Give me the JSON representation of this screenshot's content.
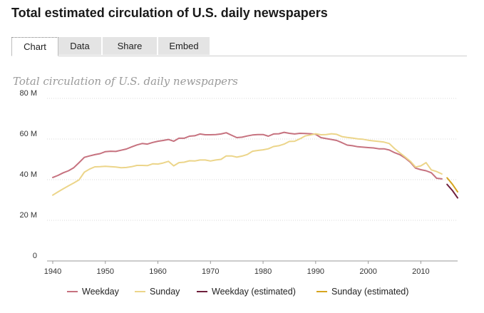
{
  "page": {
    "title": "Total estimated circulation of U.S. daily newspapers"
  },
  "tabs": [
    {
      "label": "Chart",
      "active": true
    },
    {
      "label": "Data",
      "active": false
    },
    {
      "label": "Share",
      "active": false
    },
    {
      "label": "Embed",
      "active": false
    }
  ],
  "colors": {
    "weekday": "#c6727f",
    "sunday": "#ecd58a",
    "weekday_estimated": "#6e1f3c",
    "sunday_estimated": "#d6a51f",
    "grid": "#d8d8d8"
  },
  "chart_data": {
    "type": "line",
    "title": "Total circulation of U.S. daily newspapers",
    "xlabel": "",
    "ylabel": "",
    "xlim": [
      1940,
      2017
    ],
    "ylim": [
      0,
      80
    ],
    "x_ticks": [
      "1940",
      "1950",
      "1960",
      "1970",
      "1980",
      "1990",
      "2000",
      "2010"
    ],
    "x_tick_values": [
      1940,
      1950,
      1960,
      1970,
      1980,
      1990,
      2000,
      2010
    ],
    "y_ticks": [
      "0",
      "20 M",
      "40 M",
      "60 M",
      "80 M"
    ],
    "y_tick_values": [
      0,
      20,
      40,
      60,
      80
    ],
    "grid": true,
    "legend_position": "bottom",
    "series": [
      {
        "name": "Weekday",
        "color_key": "weekday",
        "x": [
          1940,
          1941,
          1942,
          1943,
          1944,
          1945,
          1946,
          1947,
          1948,
          1949,
          1950,
          1951,
          1952,
          1953,
          1954,
          1955,
          1956,
          1957,
          1958,
          1959,
          1960,
          1961,
          1962,
          1963,
          1964,
          1965,
          1966,
          1967,
          1968,
          1969,
          1970,
          1971,
          1972,
          1973,
          1974,
          1975,
          1976,
          1977,
          1978,
          1979,
          1980,
          1981,
          1982,
          1983,
          1984,
          1985,
          1986,
          1987,
          1988,
          1989,
          1990,
          1991,
          1992,
          1993,
          1994,
          1995,
          1996,
          1997,
          1998,
          1999,
          2000,
          2001,
          2002,
          2003,
          2004,
          2005,
          2006,
          2007,
          2008,
          2009,
          2010,
          2011,
          2012,
          2013,
          2014
        ],
        "y": [
          41.1,
          42.1,
          43.4,
          44.4,
          45.9,
          48.4,
          51.0,
          51.7,
          52.3,
          52.8,
          53.8,
          54.0,
          53.9,
          54.5,
          55.1,
          56.1,
          57.1,
          57.8,
          57.5,
          58.3,
          58.9,
          59.3,
          59.8,
          58.9,
          60.4,
          60.4,
          61.4,
          61.6,
          62.5,
          62.1,
          62.1,
          62.2,
          62.5,
          63.1,
          61.9,
          60.7,
          60.9,
          61.5,
          62.0,
          62.2,
          62.2,
          61.4,
          62.5,
          62.6,
          63.3,
          62.8,
          62.5,
          62.8,
          62.7,
          62.6,
          62.3,
          60.7,
          60.2,
          59.8,
          59.3,
          58.2,
          57.0,
          56.7,
          56.2,
          56.0,
          55.8,
          55.6,
          55.2,
          55.2,
          54.6,
          53.3,
          52.3,
          50.7,
          48.6,
          45.7,
          44.9,
          44.4,
          43.4,
          40.7,
          40.4
        ]
      },
      {
        "name": "Sunday",
        "color_key": "sunday",
        "x": [
          1940,
          1941,
          1942,
          1943,
          1944,
          1945,
          1946,
          1947,
          1948,
          1949,
          1950,
          1951,
          1952,
          1953,
          1954,
          1955,
          1956,
          1957,
          1958,
          1959,
          1960,
          1961,
          1962,
          1963,
          1964,
          1965,
          1966,
          1967,
          1968,
          1969,
          1970,
          1971,
          1972,
          1973,
          1974,
          1975,
          1976,
          1977,
          1978,
          1979,
          1980,
          1981,
          1982,
          1983,
          1984,
          1985,
          1986,
          1987,
          1988,
          1989,
          1990,
          1991,
          1992,
          1993,
          1994,
          1995,
          1996,
          1997,
          1998,
          1999,
          2000,
          2001,
          2002,
          2003,
          2004,
          2005,
          2006,
          2007,
          2008,
          2009,
          2010,
          2011,
          2012,
          2013,
          2014
        ],
        "y": [
          32.4,
          34.0,
          35.5,
          37.0,
          38.4,
          39.9,
          43.7,
          45.2,
          46.3,
          46.4,
          46.6,
          46.4,
          46.2,
          45.9,
          46.0,
          46.4,
          47.0,
          47.0,
          46.9,
          47.8,
          47.7,
          48.2,
          49.0,
          46.8,
          48.4,
          48.6,
          49.3,
          49.2,
          49.7,
          49.7,
          49.2,
          49.7,
          50.0,
          51.7,
          51.7,
          51.1,
          51.6,
          52.4,
          54.0,
          54.4,
          54.7,
          55.2,
          56.3,
          56.7,
          57.5,
          58.8,
          58.9,
          60.1,
          61.5,
          62.0,
          62.6,
          62.1,
          62.2,
          62.6,
          62.3,
          61.2,
          60.8,
          60.5,
          60.1,
          59.9,
          59.4,
          59.1,
          58.8,
          58.5,
          57.8,
          55.3,
          53.2,
          51.2,
          49.1,
          46.2,
          46.8,
          48.4,
          44.8,
          44.0,
          42.8
        ]
      },
      {
        "name": "Weekday (estimated)",
        "color_key": "weekday_estimated",
        "x": [
          2015,
          2016,
          2017
        ],
        "y": [
          37.7,
          34.7,
          31.0
        ]
      },
      {
        "name": "Sunday (estimated)",
        "color_key": "sunday_estimated",
        "x": [
          2015,
          2016,
          2017
        ],
        "y": [
          40.9,
          37.8,
          34.0
        ]
      }
    ]
  }
}
